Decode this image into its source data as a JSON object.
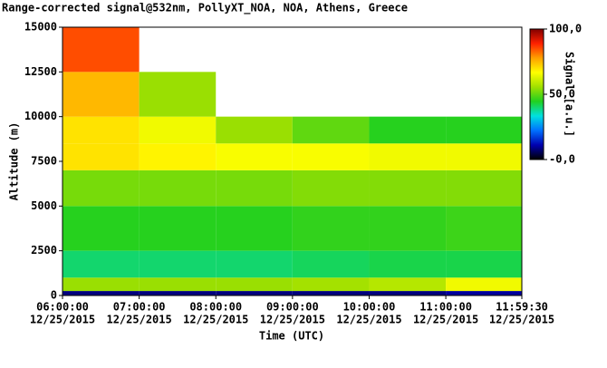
{
  "chart_data": {
    "type": "heatmap",
    "title": "Range-corrected signal@532nm, PollyXT_NOA, NOA, Athens, Greece",
    "x_label": "Time (UTC)",
    "y_label": "Altitude (m)",
    "colorbar_label": "Signal [a.u.]",
    "xbins": [
      6,
      7,
      8,
      9,
      10,
      11,
      11.991667
    ],
    "ybins": [
      0,
      250,
      1000,
      2500,
      5000,
      7000,
      8500,
      10000,
      12500,
      15000
    ],
    "z": [
      [
        8,
        8,
        8,
        8,
        8,
        10
      ],
      [
        55,
        55,
        55,
        56,
        58,
        65
      ],
      [
        40,
        40,
        40,
        41,
        42,
        42
      ],
      [
        45,
        45,
        45,
        46,
        46,
        47
      ],
      [
        52,
        52,
        52,
        53,
        53,
        53
      ],
      [
        70,
        68,
        66,
        66,
        65,
        65
      ],
      [
        70,
        65,
        55,
        50,
        45,
        45
      ],
      [
        75,
        55,
        null,
        null,
        null,
        null
      ],
      [
        85,
        null,
        null,
        null,
        null,
        null
      ]
    ],
    "colormap": [
      "#000000",
      "#0000b0",
      "#0070ff",
      "#00e0e0",
      "#20d020",
      "#a0e000",
      "#ffff00",
      "#ffa000",
      "#ff2000",
      "#800000"
    ],
    "xlim": [
      6,
      11.991667
    ],
    "ylim": [
      0,
      15000
    ],
    "xticks": [
      {
        "value": 6,
        "label": "06:00:00",
        "date": "12/25/2015"
      },
      {
        "value": 7,
        "label": "07:00:00",
        "date": "12/25/2015"
      },
      {
        "value": 8,
        "label": "08:00:00",
        "date": "12/25/2015"
      },
      {
        "value": 9,
        "label": "09:00:00",
        "date": "12/25/2015"
      },
      {
        "value": 10,
        "label": "10:00:00",
        "date": "12/25/2015"
      },
      {
        "value": 11,
        "label": "11:00:00",
        "date": "12/25/2015"
      },
      {
        "value": 11.991667,
        "label": "11:59:30",
        "date": "12/25/2015"
      }
    ],
    "yticks": [
      0,
      2500,
      5000,
      7500,
      10000,
      12500,
      15000
    ],
    "clim": [
      0,
      100
    ],
    "cticks": [
      {
        "value": 0,
        "label": "-0,0"
      },
      {
        "value": 50,
        "label": "50,0"
      },
      {
        "value": 100,
        "label": "100,0"
      }
    ]
  }
}
